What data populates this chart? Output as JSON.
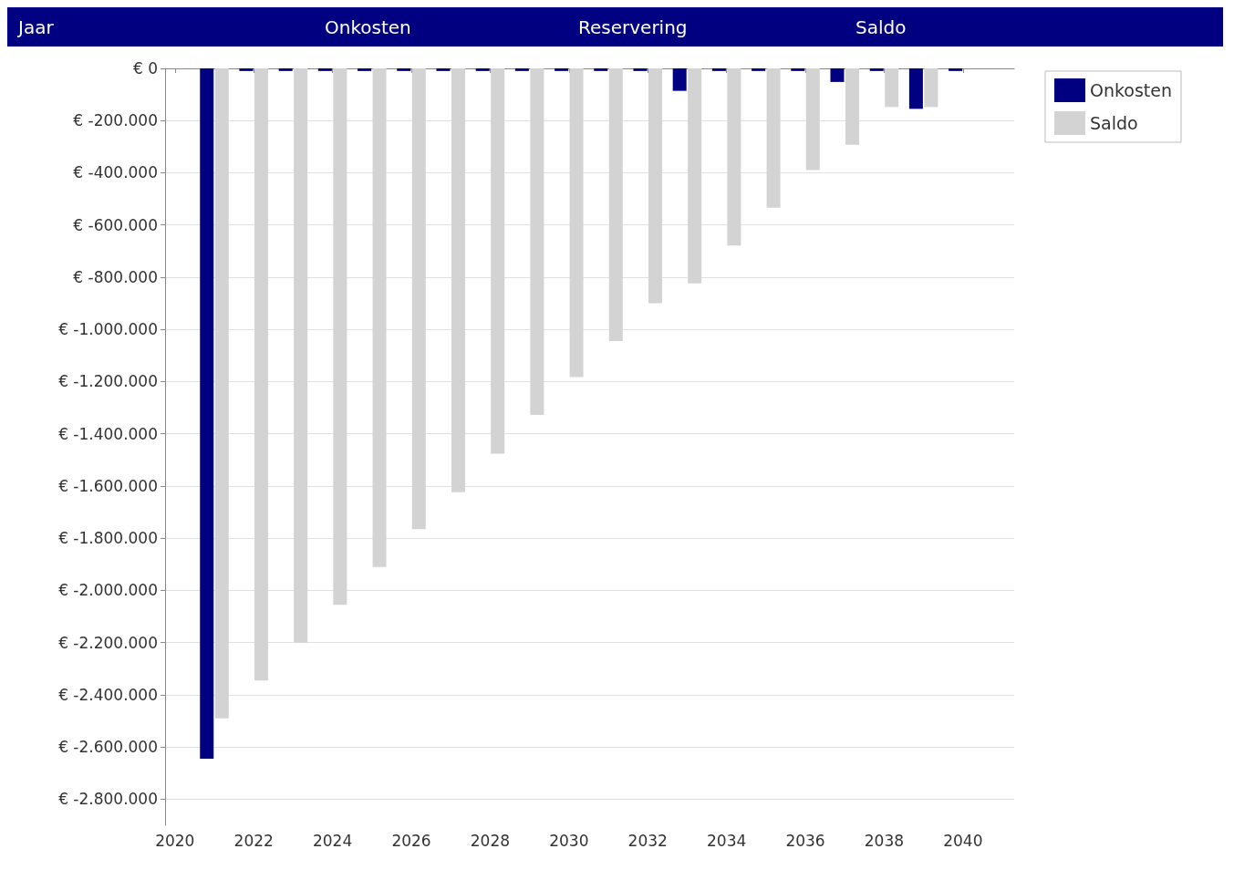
{
  "chart_data": {
    "type": "bar",
    "annotations": [
      "Jaar",
      "Onkosten",
      "Reservering",
      "Saldo"
    ],
    "x": [
      2021,
      2022,
      2023,
      2024,
      2025,
      2026,
      2027,
      2028,
      2029,
      2030,
      2031,
      2032,
      2033,
      2034,
      2035,
      2036,
      2037,
      2038,
      2039,
      2040
    ],
    "series": [
      {
        "name": "Onkosten",
        "color": "#000080",
        "values": [
          -2645000,
          -10000,
          -10000,
          -10000,
          -10000,
          -10000,
          -10000,
          -10000,
          -10000,
          -10000,
          -10000,
          -10000,
          -86000,
          -10000,
          -10000,
          -10000,
          -52000,
          -10000,
          -155000,
          -10000
        ]
      },
      {
        "name": "Saldo",
        "color": "#d3d3d3",
        "values": [
          -2490000,
          -2345000,
          -2200000,
          -2055000,
          -1910000,
          -1765000,
          -1624000,
          -1476000,
          -1328000,
          -1183000,
          -1045000,
          -900000,
          -824000,
          -679000,
          -534000,
          -390000,
          -293000,
          -148000,
          -148000,
          null
        ]
      }
    ],
    "xlim": [
      2019.75,
      2041.3
    ],
    "xticks": [
      2020,
      2022,
      2024,
      2026,
      2028,
      2030,
      2032,
      2034,
      2036,
      2038,
      2040
    ],
    "ylim": [
      -2900000,
      0
    ],
    "yticks": [
      {
        "value": 0,
        "label": "€ 0"
      },
      {
        "value": -200000,
        "label": "€ -200.000"
      },
      {
        "value": -400000,
        "label": "€ -400.000"
      },
      {
        "value": -600000,
        "label": "€ -600.000"
      },
      {
        "value": -800000,
        "label": "€ -800.000"
      },
      {
        "value": -1000000,
        "label": "€ -1.000.000"
      },
      {
        "value": -1200000,
        "label": "€ -1.200.000"
      },
      {
        "value": -1400000,
        "label": "€ -1.400.000"
      },
      {
        "value": -1600000,
        "label": "€ -1.600.000"
      },
      {
        "value": -1800000,
        "label": "€ -1.800.000"
      },
      {
        "value": -2000000,
        "label": "€ -2.000.000"
      },
      {
        "value": -2200000,
        "label": "€ -2.200.000"
      },
      {
        "value": -2400000,
        "label": "€ -2.400.000"
      },
      {
        "value": -2600000,
        "label": "€ -2.600.000"
      },
      {
        "value": -2800000,
        "label": "€ -2.800.000"
      }
    ],
    "grid": "y",
    "legend": "top right"
  }
}
